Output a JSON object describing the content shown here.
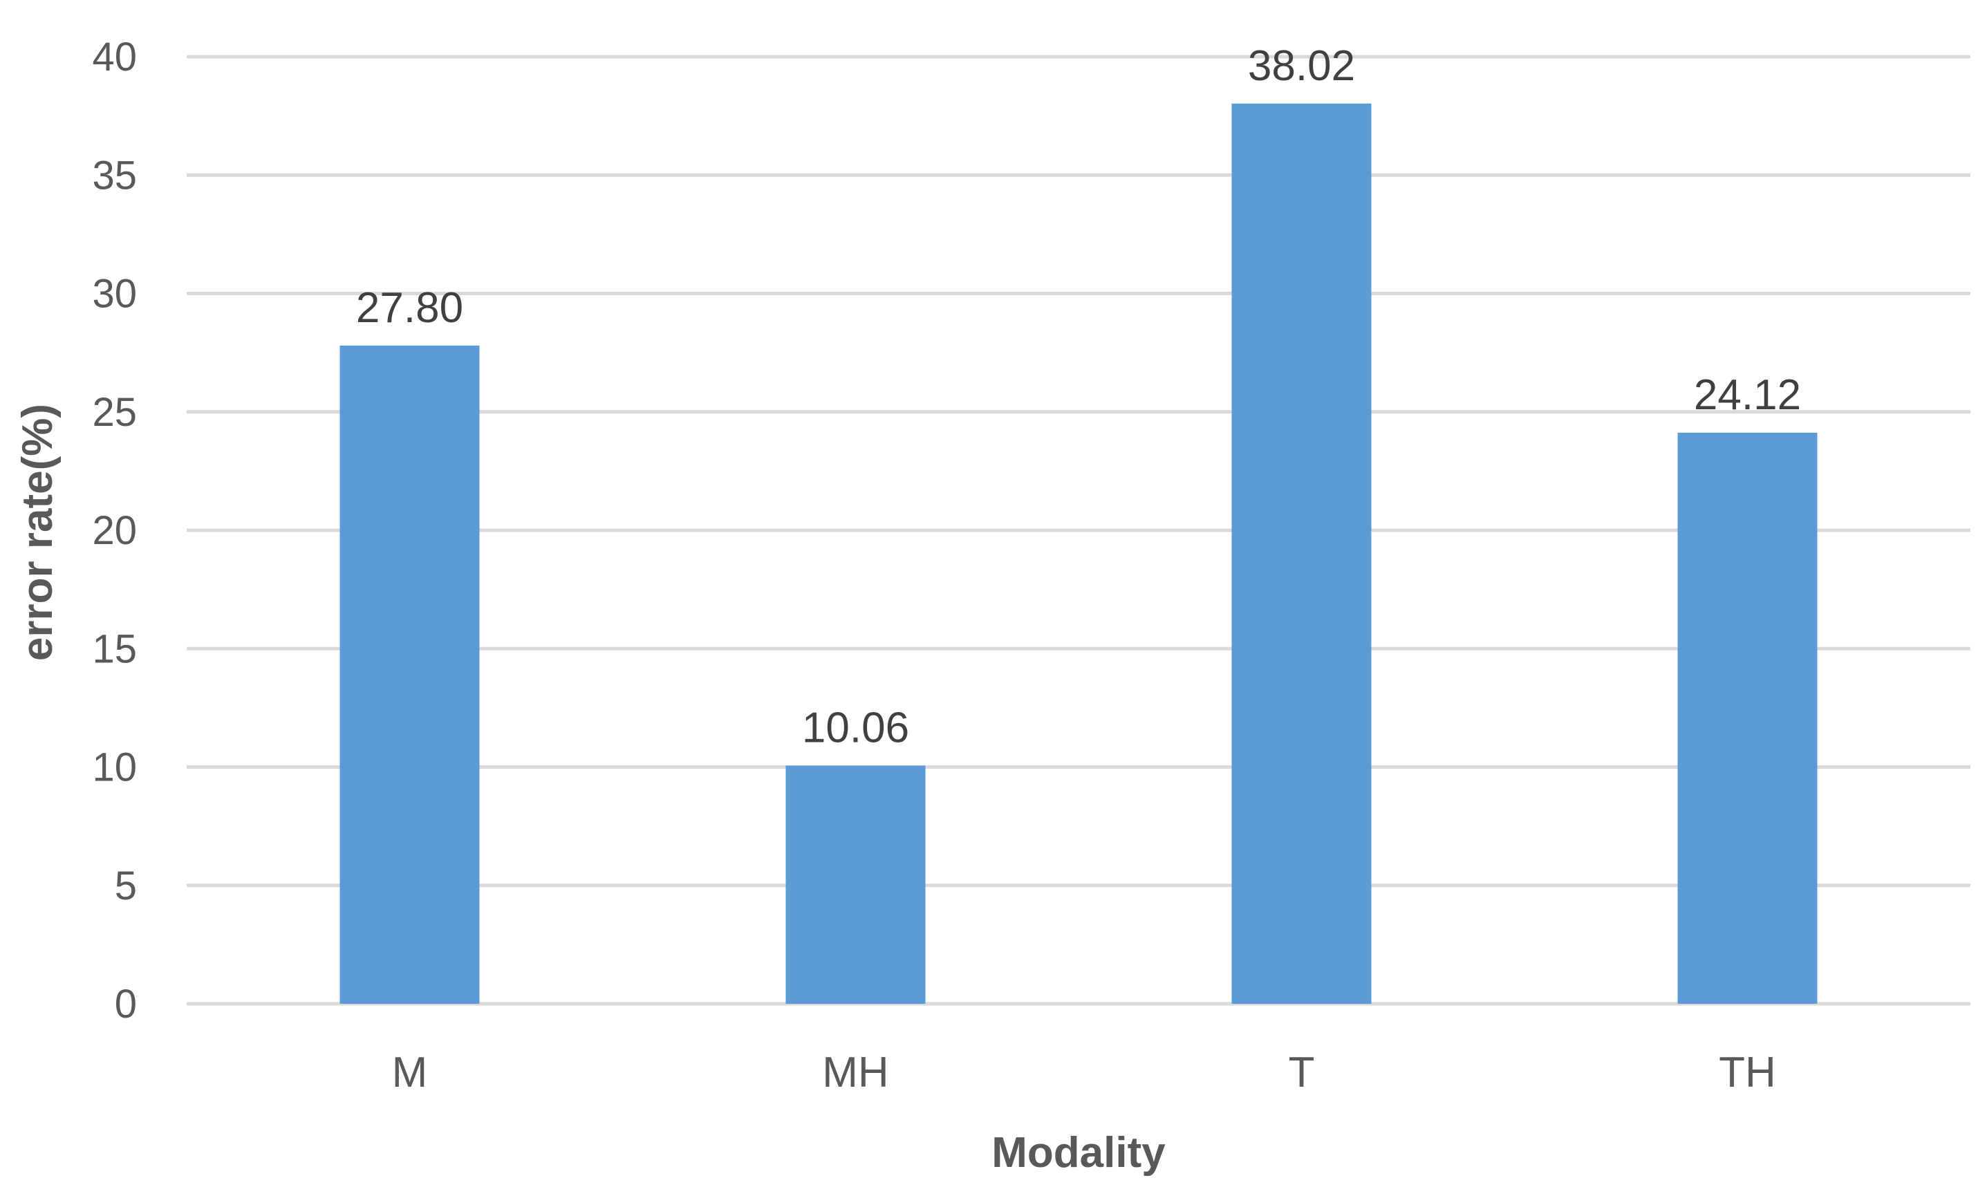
{
  "chart_data": {
    "type": "bar",
    "categories": [
      "M",
      "MH",
      "T",
      "TH"
    ],
    "values": [
      27.8,
      10.06,
      38.02,
      24.12
    ],
    "data_labels": [
      "27.80",
      "10.06",
      "38.02",
      "24.12"
    ],
    "title": "",
    "xlabel": "Modality",
    "ylabel": "error rate(%)",
    "ylim": [
      0,
      40
    ],
    "yticks": [
      0,
      5,
      10,
      15,
      20,
      25,
      30,
      35,
      40
    ],
    "grid": true,
    "legend": "none",
    "bar_color": "#5B9BD5",
    "grid_color": "#D9D9D9"
  }
}
